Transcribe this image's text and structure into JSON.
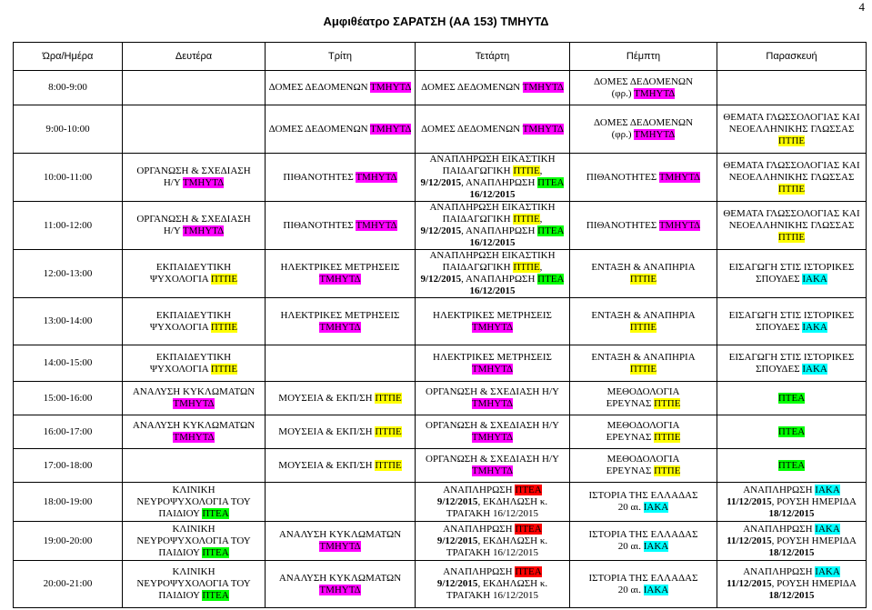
{
  "page_number": "4",
  "title": "Αμφιθέατρο ΣΑΡΑΤΣΗ (ΑΑ 153) ΤΜΗΥΤΔ",
  "headers": [
    "Ώρα/Ημέρα",
    "Δευτέρα",
    "Τρίτη",
    "Τετάρτη",
    "Πέμπτη",
    "Παρασκευή"
  ],
  "times": [
    "8:00-9:00",
    "9:00-10:00",
    "10:00-11:00",
    "11:00-12:00",
    "12:00-13:00",
    "13:00-14:00",
    "14:00-15:00",
    "15:00-16:00",
    "16:00-17:00",
    "17:00-18:00",
    "18:00-19:00",
    "19:00-20:00",
    "20:00-21:00"
  ],
  "tags": {
    "tmhytd": "ΤΜΗΥΤΔ",
    "ptpe": "ΠΤΠΕ",
    "iaka": "ΙΑΚΑ",
    "ptea": "ΠΤΕΑ"
  },
  "colors": {
    "tmhytd": "#ff00ff",
    "ptpe": "#ffff00",
    "iaka": "#00ffff",
    "ptea_green": "#00ff00",
    "ptea_red": "#ff0000"
  },
  "text": {
    "domes": "ΔΟΜΕΣ ΔΕΔΟΜΕΝΩΝ",
    "domes_l1": "ΔΟΜΕΣ ΔΕΔΟΜΕΝΩΝ",
    "domes_l2": "(φρ.)",
    "glossa_l1": "ΘΕΜΑΤΑ ΓΛΩΣΣΟΛΟΓΙΑΣ ΚΑΙ",
    "glossa_l2": "ΝΕΟΕΛΛΗΝΙΚΗΣ ΓΛΩΣΣΑΣ",
    "org_l1": "ΟΡΓΑΝΩΣΗ & ΣΧΕΔΙΑΣΗ",
    "org_l2": "Η/Υ",
    "org_full": "ΟΡΓΑΝΩΣΗ & ΣΧΕΔΙΑΣΗ Η/Υ",
    "pithanotites": "ΠΙΘΑΝΟΤΗΤΕΣ",
    "anapl_eik_l1": "ΑΝΑΠΛΗΡΩΣΗ ΕΙΚΑΣΤΙΚΗ",
    "anapl_eik_l2": "ΠΑΙΔΑΓΩΓΙΚΗ",
    "anapl_date1": "9/12/2015",
    "anapl_mid": ", ΑΝΑΠΛΗΡΩΣΗ",
    "date_16": "16/12/2015",
    "ekp_psy_l1": "ΕΚΠΑΙΔΕΥΤΙΚΗ",
    "ekp_psy_l2": "ΨΥΧΟΛΟΓΙΑ",
    "ilektrikes": "ΗΛΕΚΤΡΙΚΕΣ ΜΕΤΡΗΣΕΙΣ",
    "entaxi": "ΕΝΤΑΞΗ & ΑΝΑΠΗΡΙΑ",
    "eisagogi_l1": "ΕΙΣΑΓΩΓΗ ΣΤΙΣ ΙΣΤΟΡΙΚΕΣ",
    "eisagogi_l2": "ΣΠΟΥΔΕΣ",
    "analysi": "ΑΝΑΛΥΣΗ ΚΥΚΛΩΜΑΤΩΝ",
    "mouseia": "ΜΟΥΣΕΙΑ & ΕΚΠ/ΣΗ",
    "methodologia_l1": "ΜΕΘΟΔΟΛΟΓΙΑ",
    "methodologia_l2": "ΕΡΕΥΝΑΣ",
    "kliniki_l1": "ΚΛΙΝΙΚΗ",
    "kliniki_l2": "ΝΕΥΡΟΨΥΧΟΛΟΓΙΑ ΤΟΥ",
    "kliniki_l3": "ΠΑΙΔΙΟΥ",
    "anaplirosi": "ΑΝΑΠΛΗΡΩΣΗ",
    "ekdilosi_date": "9/12/2015",
    "ekdilosi_txt": ", ΕΚΔΗΛΩΣΗ κ.",
    "tragaki": "ΤΡΑΓΑΚΗ 16/12/2015",
    "istoria": "ΙΣΤΟΡΙΑ ΤΗΣ ΕΛΛΑΔΑΣ",
    "istoria_l2": "20 αι.",
    "rousi_date": "11/12/2015",
    "rousi_txt": ", ΡΟΥΣΗ ΗΜΕΡΙΔΑ",
    "date_18": "18/12/2015"
  }
}
